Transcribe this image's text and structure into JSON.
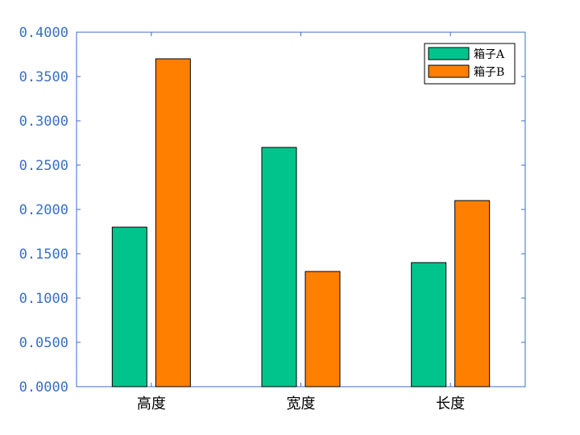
{
  "chart_data": {
    "type": "bar",
    "categories": [
      "高度",
      "宽度",
      "长度"
    ],
    "series": [
      {
        "name": "箱子A",
        "values": [
          0.18,
          0.27,
          0.14
        ],
        "color": "#00c48c"
      },
      {
        "name": "箱子B",
        "values": [
          0.37,
          0.13,
          0.21
        ],
        "color": "#ff7f00"
      }
    ],
    "ylim": [
      0,
      0.4
    ],
    "yticks": [
      "0.0000",
      "0.0500",
      "0.1000",
      "0.1500",
      "0.2000",
      "0.2500",
      "0.3000",
      "0.3500",
      "0.4000"
    ],
    "title": "",
    "xlabel": "",
    "ylabel": "",
    "grid": false,
    "legend_position": "top-right",
    "axis_color": "#3a6fc4"
  }
}
